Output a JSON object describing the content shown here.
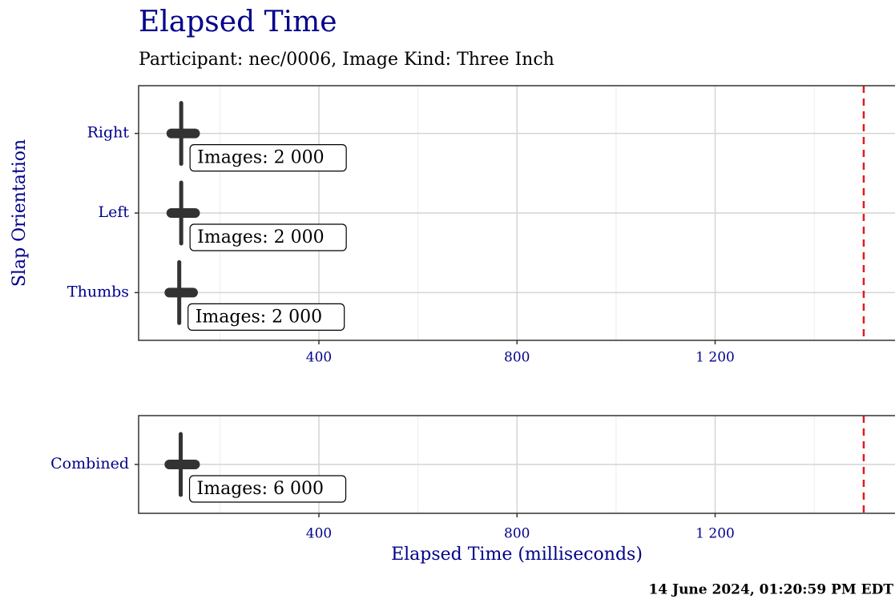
{
  "chart_data": [
    {
      "type": "range-median",
      "title": "Elapsed Time",
      "subtitle": "Participant: nec/0006, Image Kind: Three Inch",
      "ylabel": "Slap Orientation",
      "categories": [
        "Right",
        "Left",
        "Thumbs"
      ],
      "medians": [
        122,
        122,
        118
      ],
      "mins": [
        102,
        102,
        98
      ],
      "maxs": [
        150,
        150,
        146
      ],
      "counts": [
        2000,
        2000,
        2000
      ],
      "value_labels": [
        "Images: 2 000",
        "Images: 2 000",
        "Images: 2 000"
      ],
      "xlim": [
        36,
        1568
      ],
      "xticks": [
        400,
        800,
        {
          "value": 1200,
          "label": "1 200"
        }
      ],
      "xminor": [
        200,
        600,
        1000,
        1400
      ],
      "threshold": 1500,
      "threshold_color": "#e41a1c",
      "color": "#333333",
      "grid": true
    },
    {
      "type": "range-median",
      "xlabel": "Elapsed Time (milliseconds)",
      "categories": [
        "Combined"
      ],
      "medians": [
        121
      ],
      "mins": [
        98
      ],
      "maxs": [
        150
      ],
      "counts": [
        6000
      ],
      "value_labels": [
        "Images: 6 000"
      ],
      "xlim": [
        36,
        1568
      ],
      "xticks": [
        400,
        800,
        {
          "value": 1200,
          "label": "1 200"
        }
      ],
      "xminor": [
        200,
        600,
        1000,
        1400
      ],
      "threshold": 1500,
      "threshold_color": "#e41a1c",
      "color": "#333333",
      "grid": true
    }
  ],
  "footer": "14 June 2024, 01:20:59 PM EDT"
}
